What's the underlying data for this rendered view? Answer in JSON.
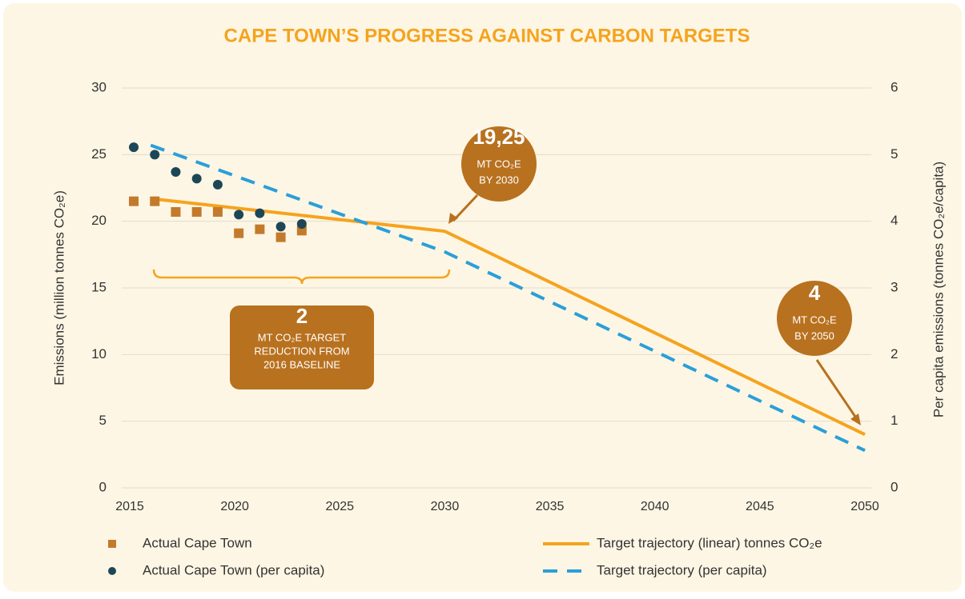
{
  "chart_data": {
    "type": "line",
    "title": "CAPE TOWN’S PROGRESS AGAINST CARBON TARGETS",
    "y_label": "Emissions (million tonnes CO₂e)",
    "y2_label": "Per capita emissions (tonnes CO₂e/capita)",
    "xlim": [
      2015,
      2050
    ],
    "xticks": [
      2015,
      2020,
      2025,
      2030,
      2035,
      2040,
      2045,
      2050
    ],
    "ylim": [
      0,
      30
    ],
    "yticks": [
      0,
      5,
      10,
      15,
      20,
      25,
      30
    ],
    "y2lim": [
      0,
      6
    ],
    "y2ticks": [
      0,
      1,
      2,
      3,
      4,
      5,
      6
    ],
    "grid": true,
    "series": [
      {
        "name": "Actual Cape Town",
        "color": "#c47a2c",
        "marker": "square",
        "x": [
          2015,
          2016,
          2017,
          2018,
          2019,
          2020,
          2021,
          2022,
          2023
        ],
        "values": [
          21.5,
          21.5,
          20.7,
          20.7,
          20.7,
          19.1,
          19.4,
          18.8,
          19.3
        ]
      },
      {
        "name": "Actual Cape Town (per capita)",
        "color": "#1d4757",
        "marker": "circle",
        "axis": "y2",
        "x": [
          2015,
          2016,
          2017,
          2018,
          2019,
          2020,
          2021,
          2022,
          2023
        ],
        "values": [
          5.11,
          5.0,
          4.74,
          4.64,
          4.55,
          4.1,
          4.12,
          3.92,
          3.96
        ]
      },
      {
        "name": "Target trajectory (linear) tonnes CO₂e",
        "color": "#f5a31e",
        "marker": "line",
        "x": [
          2016,
          2030,
          2050
        ],
        "values": [
          21.7,
          19.25,
          4
        ]
      },
      {
        "name": "Target trajectory (per capita)",
        "color": "#2a9fd8",
        "marker": "dashed",
        "axis": "y2",
        "x": [
          2016,
          2030,
          2050
        ],
        "values": [
          5.14,
          3.54,
          0.56
        ]
      }
    ],
    "annotations": [
      {
        "lines": [
          "19,25",
          "MT CO₂E",
          "BY 2030"
        ]
      },
      {
        "lines": [
          "4",
          "MT CO₂E",
          "BY 2050"
        ]
      },
      {
        "lines": [
          "2",
          "MT CO₂E TARGET",
          "REDUCTION FROM",
          "2016 BASELINE"
        ]
      }
    ]
  }
}
